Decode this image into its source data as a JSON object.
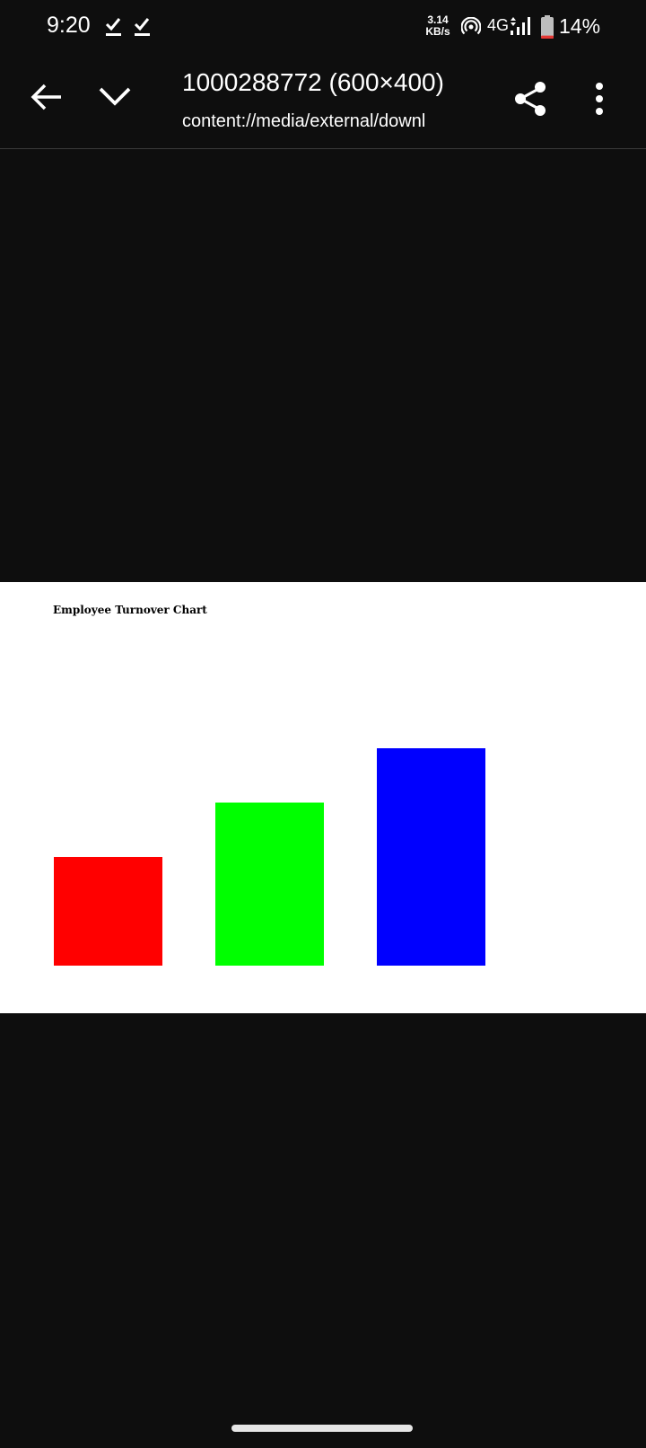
{
  "status_bar": {
    "time": "9:20",
    "net_speed_value": "3.14",
    "net_speed_unit": "KB/s",
    "network_type": "4G",
    "battery_percent": "14%",
    "battery_level": 0.14,
    "icons": [
      "download-done-icon",
      "download-done-icon",
      "hotspot-icon",
      "signal-icon",
      "battery-icon"
    ]
  },
  "toolbar": {
    "title": "1000288772 (600×400)",
    "uri": "content://media/external/downl",
    "icons": [
      "back-arrow-icon",
      "chevron-down-icon",
      "share-icon",
      "more-vert-icon"
    ]
  },
  "colors": {
    "background": "#0e0e0e",
    "text": "#ffffff"
  },
  "chart_data": {
    "type": "bar",
    "title": "Employee Turnover Chart",
    "categories": [
      "",
      "",
      ""
    ],
    "values": [
      20,
      30,
      40
    ],
    "colors": [
      "#ff0000",
      "#00ff00",
      "#0000ff"
    ],
    "ylim": [
      0,
      60
    ],
    "xlabel": "",
    "ylabel": "",
    "grid": false
  }
}
